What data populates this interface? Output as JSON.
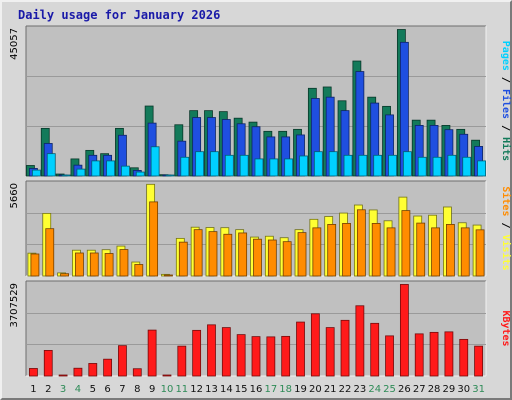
{
  "title": "Daily usage for January 2026",
  "colors": {
    "pages": "#00d0ff",
    "files": "#1f4fe0",
    "hits": "#137a5a",
    "visits": "#ffff33",
    "sites": "#ff8c00",
    "kbytes": "#ff1a1a",
    "day_weekday": "#111111",
    "day_weekend": "#2e8b57",
    "panel": "#c0c0c0"
  },
  "chart_data": [
    {
      "type": "bar",
      "title": "Daily usage for January 2026",
      "categories": [
        "1",
        "2",
        "3",
        "4",
        "5",
        "6",
        "7",
        "8",
        "9",
        "10",
        "11",
        "12",
        "13",
        "14",
        "15",
        "16",
        "17",
        "18",
        "19",
        "20",
        "21",
        "22",
        "23",
        "24",
        "25",
        "26",
        "27",
        "28",
        "29",
        "30",
        "31"
      ],
      "weekend_days": [
        "3",
        "4",
        "10",
        "11",
        "17",
        "18",
        "24",
        "25",
        "31"
      ],
      "ymax_label": "45057",
      "ylim": [
        0,
        45057
      ],
      "legend": [
        "Pages",
        "Files",
        "Hits"
      ],
      "series": [
        {
          "name": "Hits",
          "values": [
            3200,
            14500,
            600,
            5200,
            7800,
            6800,
            14500,
            2500,
            21300,
            400,
            15600,
            19900,
            19900,
            19600,
            17600,
            16400,
            13600,
            13600,
            14200,
            26700,
            27100,
            22900,
            35000,
            24000,
            21200,
            44600,
            17000,
            17000,
            15400,
            14200,
            10900
          ]
        },
        {
          "name": "Files",
          "values": [
            2300,
            9900,
            300,
            3300,
            6300,
            6300,
            12400,
            1700,
            16100,
            300,
            10600,
            17800,
            17800,
            17200,
            15900,
            15000,
            11900,
            11900,
            12500,
            23600,
            24000,
            19900,
            31800,
            22200,
            18600,
            40700,
            15400,
            15400,
            14100,
            12700,
            9000
          ]
        },
        {
          "name": "Pages",
          "values": [
            1800,
            6800,
            200,
            2100,
            4600,
            4600,
            3000,
            1200,
            8900,
            200,
            5700,
            7400,
            7400,
            6300,
            6300,
            5200,
            5200,
            5200,
            6100,
            7400,
            7400,
            6300,
            6300,
            6300,
            6300,
            7400,
            5700,
            5700,
            6300,
            5700,
            4600
          ]
        }
      ]
    },
    {
      "type": "bar",
      "ymax_label": "5660",
      "ylim": [
        0,
        5660
      ],
      "legend": [
        "Sites",
        "Visits"
      ],
      "series": [
        {
          "name": "Visits",
          "values": [
            1390,
            3810,
            190,
            1570,
            1570,
            1600,
            1820,
            850,
            5580,
            100,
            2290,
            2970,
            2950,
            2940,
            2820,
            2370,
            2420,
            2330,
            2820,
            3450,
            3620,
            3830,
            4320,
            4020,
            3360,
            4800,
            3650,
            3700,
            4200,
            3240,
            3100
          ]
        },
        {
          "name": "Sites",
          "values": [
            1340,
            2880,
            140,
            1400,
            1400,
            1370,
            1610,
            700,
            4510,
            60,
            2060,
            2820,
            2700,
            2540,
            2620,
            2240,
            2190,
            2090,
            2640,
            2930,
            3140,
            3200,
            4030,
            3200,
            2930,
            3980,
            3220,
            2930,
            3140,
            2930,
            2810
          ]
        }
      ]
    },
    {
      "type": "bar",
      "ymax_label": "3707529",
      "ylim": [
        0,
        3707529
      ],
      "legend": [
        "KBytes"
      ],
      "series": [
        {
          "name": "KBytes",
          "values": [
            300000,
            1020000,
            20000,
            310000,
            500000,
            670000,
            1210000,
            290000,
            1830000,
            30000,
            1190000,
            1820000,
            2040000,
            1930000,
            1650000,
            1570000,
            1560000,
            1580000,
            2150000,
            2480000,
            1930000,
            2220000,
            2800000,
            2100000,
            1600000,
            3650000,
            1680000,
            1740000,
            1760000,
            1460000,
            1190000
          ]
        }
      ]
    }
  ]
}
